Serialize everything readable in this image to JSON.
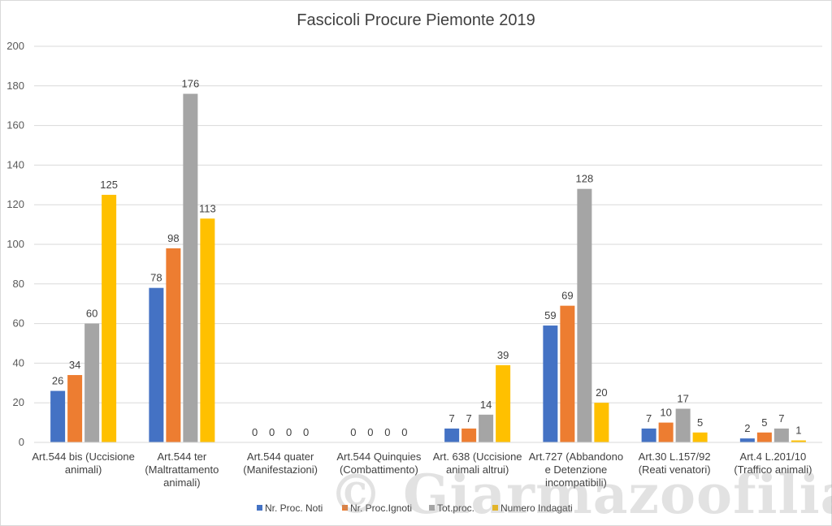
{
  "chart_data": {
    "type": "bar",
    "title": "Fascicoli Procure Piemonte 2019",
    "ylim": [
      0,
      200
    ],
    "yticks": [
      0,
      20,
      40,
      60,
      80,
      100,
      120,
      140,
      160,
      180,
      200
    ],
    "grid": true,
    "legend_position": "bottom",
    "categories": [
      [
        "Art.544 bis (Uccisione",
        "animali)"
      ],
      [
        "Art.544 ter",
        "(Maltrattamento",
        "animali)"
      ],
      [
        "Art.544 quater",
        "(Manifestazioni)"
      ],
      [
        "Art.544 Quinquies",
        "(Combattimento)"
      ],
      [
        "Art. 638 (Uccisione",
        "animali altrui)"
      ],
      [
        "Art.727 (Abbandono",
        "e Detenzione",
        "incompatibili)"
      ],
      [
        "Art.30 L.157/92",
        "(Reati venatori)"
      ],
      [
        "Art.4 L.201/10",
        "(Traffico animali)"
      ]
    ],
    "series": [
      {
        "name": "Nr. Proc. Noti",
        "color": "#4472c4",
        "values": [
          26,
          78,
          0,
          0,
          7,
          59,
          7,
          2
        ]
      },
      {
        "name": "Nr. Proc.Ignoti",
        "color": "#ed7d31",
        "values": [
          34,
          98,
          0,
          0,
          7,
          69,
          10,
          5
        ]
      },
      {
        "name": "Tot.proc.",
        "color": "#a5a5a5",
        "values": [
          60,
          176,
          0,
          0,
          14,
          128,
          17,
          7
        ]
      },
      {
        "name": "Numero Indagati",
        "color": "#ffc000",
        "values": [
          125,
          113,
          0,
          0,
          39,
          20,
          5,
          1
        ]
      }
    ]
  },
  "watermark": "© Giarmazoofilia.it"
}
